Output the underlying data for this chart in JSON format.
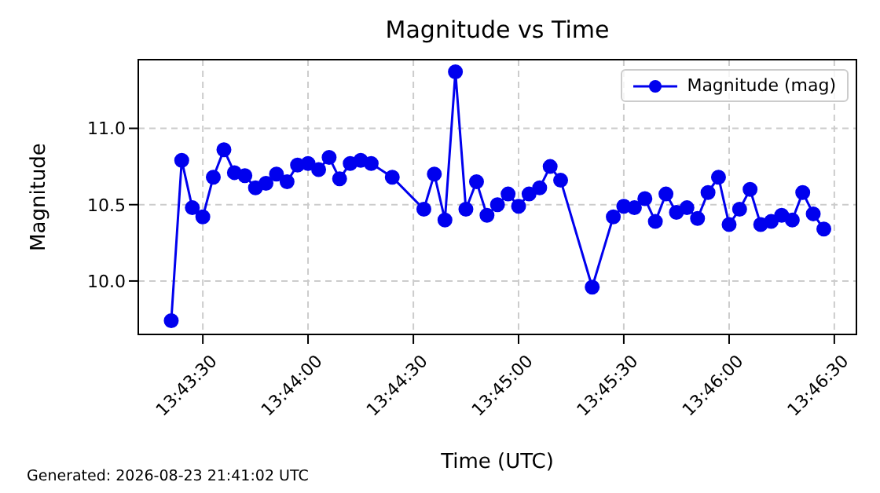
{
  "chart_data": {
    "type": "line",
    "title": "Magnitude vs Time",
    "xlabel": "Time (UTC)",
    "ylabel": "Magnitude",
    "annotations": [
      "Generated: 2026-08-23 21:41:02 UTC"
    ],
    "x": [
      13.7225,
      13.72333,
      13.72417,
      13.725,
      13.72583,
      13.72667,
      13.7275,
      13.72833,
      13.72917,
      13.73,
      13.73083,
      13.73167,
      13.7325,
      13.73333,
      13.73417,
      13.735,
      13.73583,
      13.73667,
      13.7375,
      13.73833,
      13.74,
      13.7425,
      13.74333,
      13.74417,
      13.745,
      13.74583,
      13.74667,
      13.7475,
      13.74833,
      13.74917,
      13.75,
      13.75083,
      13.75167,
      13.7525,
      13.75333,
      13.75583,
      13.7575,
      13.75833,
      13.75917,
      13.76,
      13.76083,
      13.76167,
      13.7625,
      13.76333,
      13.76417,
      13.765,
      13.76583,
      13.76667,
      13.7675,
      13.76833,
      13.76917,
      13.77,
      13.77083,
      13.77167,
      13.7725,
      13.77333,
      13.77417
    ],
    "series": [
      {
        "name": "Magnitude (mag)",
        "color": "#0000ee",
        "values": [
          9.74,
          10.79,
          10.48,
          10.42,
          10.68,
          10.86,
          10.71,
          10.69,
          10.61,
          10.64,
          10.7,
          10.65,
          10.76,
          10.77,
          10.73,
          10.81,
          10.67,
          10.77,
          10.79,
          10.77,
          10.68,
          10.47,
          10.7,
          10.4,
          11.37,
          10.47,
          10.65,
          10.43,
          10.5,
          10.57,
          10.49,
          10.57,
          10.61,
          10.75,
          10.66,
          9.96,
          10.42,
          10.49,
          10.48,
          10.54,
          10.39,
          10.57,
          10.45,
          10.48,
          10.41,
          10.58,
          10.68,
          10.37,
          10.47,
          10.6,
          10.37,
          10.39,
          10.43,
          10.4,
          10.58,
          10.44,
          10.34
        ]
      }
    ],
    "xlim": [
      13.71989,
      13.77675
    ],
    "xticks": [
      {
        "value": 13.725,
        "label": "13:43:30"
      },
      {
        "value": 13.73333,
        "label": "13:44:00"
      },
      {
        "value": 13.74167,
        "label": "13:44:30"
      },
      {
        "value": 13.75,
        "label": "13:45:00"
      },
      {
        "value": 13.75833,
        "label": "13:45:30"
      },
      {
        "value": 13.76667,
        "label": "13:46:00"
      },
      {
        "value": 13.775,
        "label": "13:46:30"
      }
    ],
    "ylim": [
      9.65,
      11.45
    ],
    "yticks": [
      {
        "value": 10.0,
        "label": "10.0"
      },
      {
        "value": 10.5,
        "label": "10.5"
      },
      {
        "value": 11.0,
        "label": "11.0"
      }
    ],
    "grid": true,
    "legend": "top right",
    "marker": "circle",
    "line_style": "solid"
  }
}
